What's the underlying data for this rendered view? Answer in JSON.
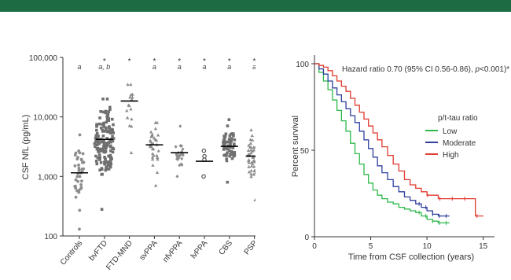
{
  "colors": {
    "banner": "#1d6b43",
    "low": "#2db84a",
    "moderate": "#2f3f9f",
    "high": "#e03a2f"
  },
  "chart_data": [
    {
      "type": "scatter",
      "ylabel": "CSF NfL (pg/mL)",
      "yscale": "log",
      "ylim": [
        100,
        100000
      ],
      "yticks": [
        "100",
        "1,000",
        "10,000",
        "100,000"
      ],
      "categories": [
        "Controls",
        "bvFTD",
        "FTD-MND",
        "svPPA",
        "nfvPPA",
        "lvPPA",
        "CBS",
        "PSP"
      ],
      "markers": [
        "circle",
        "square",
        "triangle",
        "triangle",
        "diamond",
        "circle-open",
        "square",
        "triangle"
      ],
      "medians": [
        1150,
        4200,
        18500,
        3400,
        2500,
        1800,
        3200,
        2200
      ],
      "annotations": [
        {
          "star": "",
          "letter": "a"
        },
        {
          "star": "*",
          "letter": "a, b"
        },
        {
          "star": "*",
          "letter": ""
        },
        {
          "star": "*",
          "letter": "a"
        },
        {
          "star": "*",
          "letter": "a"
        },
        {
          "star": "*",
          "letter": "a"
        },
        {
          "star": "*",
          "letter": "a"
        },
        {
          "star": "*",
          "letter": "a"
        }
      ],
      "groups": [
        {
          "n": 40,
          "median": 1150,
          "min": 130,
          "max": 5000
        },
        {
          "n": 150,
          "median": 4200,
          "min": 280,
          "max": 20000
        },
        {
          "n": 18,
          "median": 18500,
          "min": 2500,
          "max": 35000
        },
        {
          "n": 34,
          "median": 3400,
          "min": 700,
          "max": 8000
        },
        {
          "n": 22,
          "median": 2500,
          "min": 1000,
          "max": 7000
        },
        {
          "n": 4,
          "median": 1800,
          "min": 1000,
          "max": 2700
        },
        {
          "n": 60,
          "median": 3200,
          "min": 800,
          "max": 9000
        },
        {
          "n": 65,
          "median": 2200,
          "min": 400,
          "max": 6000
        }
      ]
    },
    {
      "type": "line",
      "ylabel": "Percent survival",
      "xlabel": "Time from CSF collection (years)",
      "xlim": [
        0,
        16
      ],
      "ylim": [
        0,
        105
      ],
      "xticks": [
        0,
        5,
        10,
        15
      ],
      "yticks": [
        0,
        50,
        100
      ],
      "annotation_text": "Hazard ratio 0.70 (95% CI 0.56-0.86), ",
      "annotation_p": "p",
      "annotation_rest": "<0.001)*",
      "legend_title": "p/t-tau ratio",
      "legend_position": "right",
      "series": [
        {
          "name": "Low",
          "color": "#2db84a",
          "x": [
            0,
            0.4,
            0.8,
            1.2,
            1.6,
            2,
            2.4,
            2.8,
            3.2,
            3.6,
            4,
            4.4,
            4.8,
            5.2,
            5.6,
            6,
            6.5,
            7,
            7.5,
            8,
            8.5,
            9,
            9.5,
            10,
            10.5,
            11,
            11.5,
            12
          ],
          "y": [
            100,
            95,
            90,
            85,
            79,
            73,
            67,
            61,
            54,
            48,
            42,
            36,
            31,
            27,
            24,
            22,
            20,
            19,
            17,
            16,
            15,
            14,
            12,
            10,
            9,
            8,
            8,
            8
          ]
        },
        {
          "name": "Moderate",
          "color": "#2f3f9f",
          "x": [
            0,
            0.4,
            0.8,
            1.2,
            1.6,
            2,
            2.4,
            2.8,
            3.2,
            3.6,
            4,
            4.4,
            4.8,
            5.2,
            5.6,
            6,
            6.5,
            7,
            7.5,
            8,
            8.5,
            9,
            9.5,
            10,
            10.5,
            11,
            11.5,
            12
          ],
          "y": [
            100,
            97,
            94,
            90,
            86,
            82,
            78,
            74,
            70,
            66,
            61,
            56,
            51,
            46,
            41,
            37,
            33,
            29,
            26,
            23,
            21,
            19,
            17,
            15,
            13,
            12,
            12,
            12
          ]
        },
        {
          "name": "High",
          "color": "#e03a2f",
          "x": [
            0,
            0.4,
            0.8,
            1.2,
            1.6,
            2,
            2.4,
            2.8,
            3.2,
            3.6,
            4,
            4.4,
            4.8,
            5.2,
            5.6,
            6,
            6.5,
            7,
            7.5,
            8,
            8.5,
            9,
            9.5,
            10,
            11,
            12,
            13,
            14,
            14.3,
            15
          ],
          "y": [
            100,
            99,
            98,
            96,
            93,
            90,
            87,
            84,
            80,
            76,
            72,
            68,
            64,
            60,
            56,
            52,
            47,
            42,
            38,
            33,
            30,
            28,
            26,
            24,
            22,
            22,
            22,
            22,
            12,
            12
          ]
        }
      ]
    }
  ]
}
